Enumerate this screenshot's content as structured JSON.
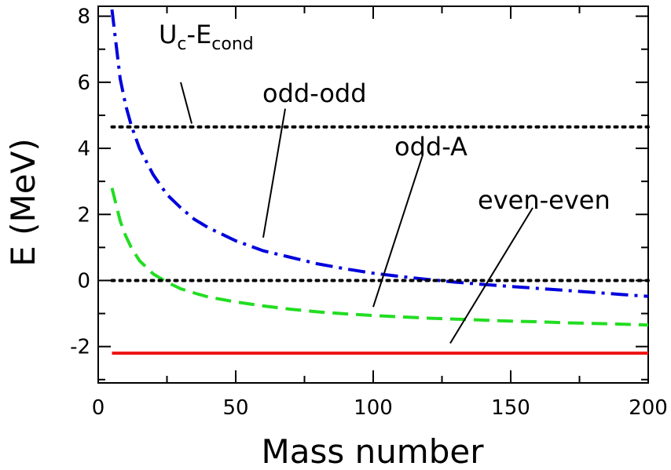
{
  "chart_data": {
    "type": "line",
    "xlabel": "Mass number",
    "ylabel": "E (MeV)",
    "xlim": [
      0,
      200
    ],
    "ylim": [
      -3.1,
      8.3
    ],
    "xticks": [
      0,
      50,
      100,
      150,
      200
    ],
    "yticks": [
      -2,
      0,
      2,
      4,
      6,
      8
    ],
    "xtick_labels": [
      "0",
      "50",
      "100",
      "150",
      "200"
    ],
    "ytick_labels": [
      "-2",
      "0",
      "2",
      "4",
      "6",
      "8"
    ],
    "grid": false,
    "series": [
      {
        "name": "odd-odd",
        "color": "#0000dd",
        "style": "dash-dot",
        "x": [
          5,
          8,
          10,
          12,
          15,
          20,
          25,
          30,
          35,
          40,
          50,
          60,
          70,
          80,
          90,
          100,
          110,
          120,
          130,
          140,
          150,
          160,
          170,
          180,
          190,
          200
        ],
        "y": [
          8.2,
          6.1,
          5.3,
          4.7,
          4.0,
          3.2,
          2.6,
          2.2,
          1.85,
          1.6,
          1.2,
          0.9,
          0.7,
          0.5,
          0.35,
          0.22,
          0.12,
          0.03,
          -0.05,
          -0.12,
          -0.18,
          -0.24,
          -0.3,
          -0.36,
          -0.42,
          -0.48
        ]
      },
      {
        "name": "odd-A",
        "color": "#22dd22",
        "style": "dashed",
        "x": [
          5,
          8,
          10,
          12,
          15,
          20,
          25,
          30,
          35,
          40,
          50,
          60,
          70,
          80,
          90,
          100,
          110,
          120,
          130,
          140,
          150,
          160,
          170,
          180,
          190,
          200
        ],
        "y": [
          2.8,
          1.8,
          1.35,
          1.0,
          0.6,
          0.2,
          -0.05,
          -0.25,
          -0.38,
          -0.5,
          -0.65,
          -0.77,
          -0.87,
          -0.95,
          -1.01,
          -1.06,
          -1.1,
          -1.14,
          -1.17,
          -1.2,
          -1.23,
          -1.25,
          -1.28,
          -1.3,
          -1.32,
          -1.35
        ]
      },
      {
        "name": "even-even",
        "color": "#ee1111",
        "style": "solid",
        "x": [
          5,
          200
        ],
        "y": [
          -2.2,
          -2.2
        ]
      },
      {
        "name": "Uc-Econd",
        "color": "#000000",
        "style": "dotted",
        "x": [
          5,
          200
        ],
        "y": [
          4.65,
          4.65
        ]
      },
      {
        "name": "zero",
        "color": "#000000",
        "style": "dotted",
        "x": [
          5,
          200
        ],
        "y": [
          0,
          0
        ]
      }
    ],
    "annotations": [
      {
        "text_main": "U",
        "sub1": "c",
        "mid": "-E",
        "sub2": "cond",
        "pointer_from": [
          30,
          6.0
        ],
        "pointer_to": [
          34,
          4.75
        ]
      },
      {
        "text": "odd-odd",
        "pointer_from": [
          68,
          5.2
        ],
        "pointer_to": [
          60,
          1.3
        ]
      },
      {
        "text": "odd-A",
        "pointer_from": [
          118,
          3.8
        ],
        "pointer_to": [
          100,
          -0.8
        ]
      },
      {
        "text": "even-even",
        "pointer_from": [
          158,
          2.2
        ],
        "pointer_to": [
          128,
          -1.9
        ]
      }
    ]
  }
}
